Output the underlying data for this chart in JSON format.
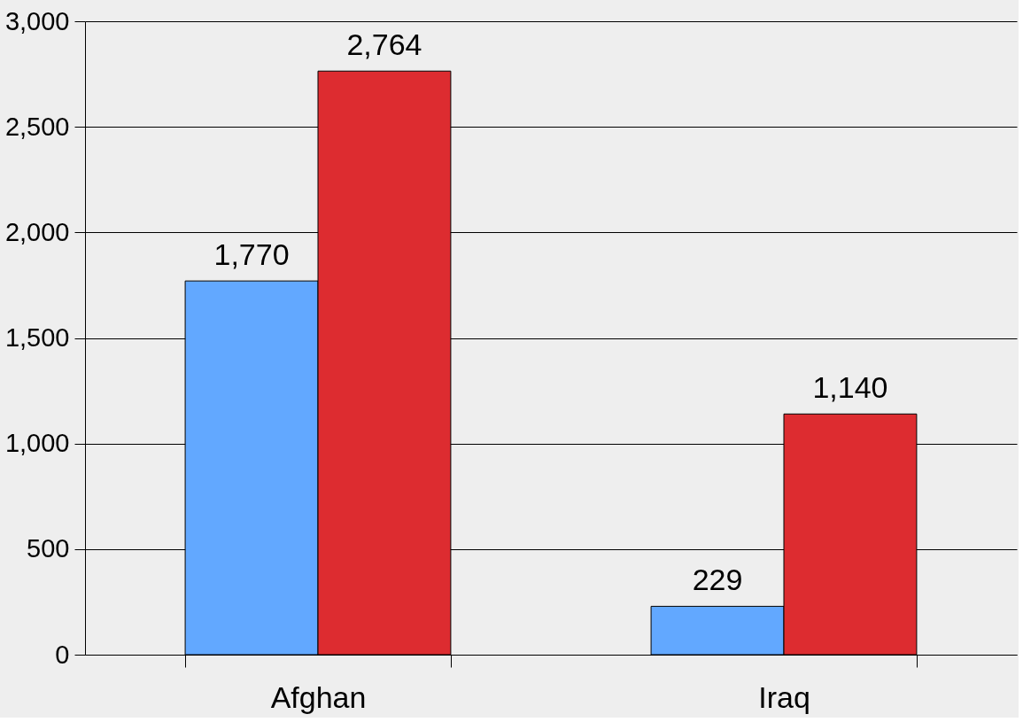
{
  "chart_data": {
    "type": "bar",
    "categories": [
      "Afghan",
      "Iraq"
    ],
    "series": [
      {
        "color": "#62a8ff",
        "values": [
          1770,
          229
        ],
        "value_labels": [
          "1,770",
          "229"
        ]
      },
      {
        "color": "#dd2c30",
        "values": [
          2764,
          1140
        ],
        "value_labels": [
          "2,764",
          "1,140"
        ]
      }
    ],
    "ylim": [
      0,
      3000
    ],
    "yticks": [
      0,
      500,
      {
        "value": 1000,
        "label": "1,000"
      },
      {
        "value": 1500,
        "label": "1,500"
      },
      {
        "value": 2000,
        "label": "2,000"
      },
      {
        "value": 2500,
        "label": "2,500"
      },
      {
        "value": 3000,
        "label": "3,000"
      }
    ],
    "grid": "y",
    "legend": false
  }
}
